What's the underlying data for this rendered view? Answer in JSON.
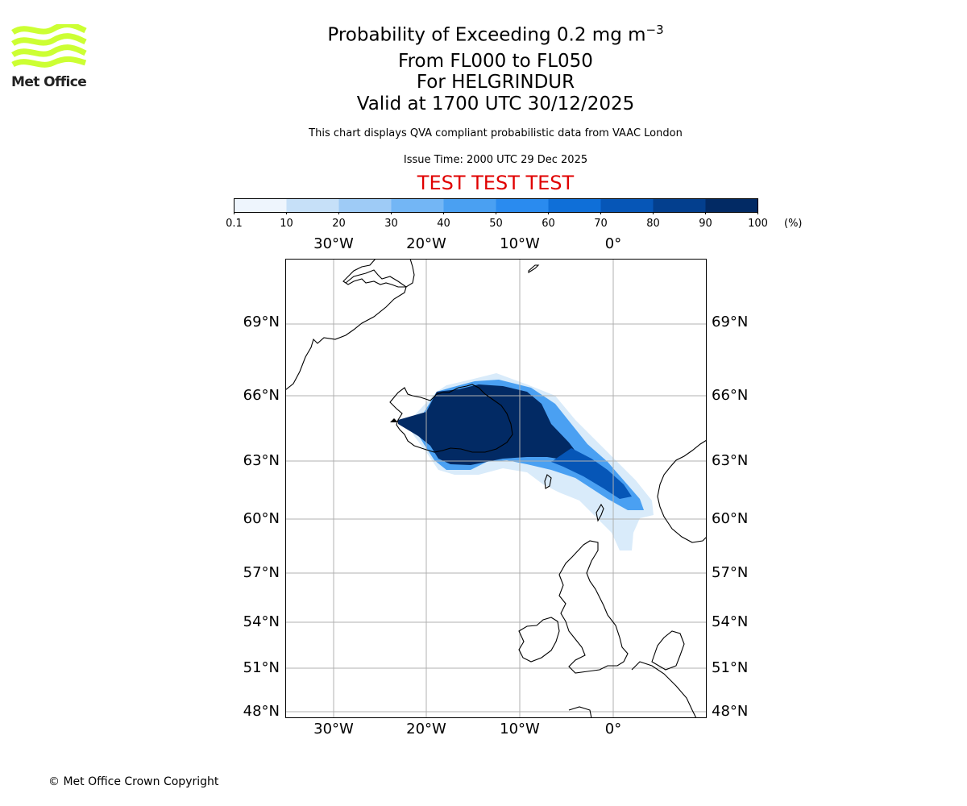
{
  "logo": {
    "text": "Met Office",
    "color": "#ccff33"
  },
  "header": {
    "title_prefix": "Probability of Exceeding 0.2 mg m",
    "title_exponent": "−3",
    "line2": "From FL000 to FL050",
    "line3": "For HELGRINDUR",
    "line4": "Valid at 1700 UTC 30/12/2025",
    "description": "This chart displays QVA compliant probabilistic data from VAAC London",
    "issue_time": "Issue Time: 2000 UTC 29 Dec 2025",
    "test_banner": "TEST TEST TEST",
    "test_color": "#e00000"
  },
  "colorbar": {
    "ticks": [
      "0.1",
      "10",
      "20",
      "30",
      "40",
      "50",
      "60",
      "70",
      "80",
      "90",
      "100"
    ],
    "colors": [
      "#eef5fd",
      "#c6e0f8",
      "#9ecbf6",
      "#73b6f5",
      "#4aa0f2",
      "#2a8bef",
      "#0f6fd8",
      "#0656b7",
      "#033f8e",
      "#022a64"
    ],
    "unit": "(%)"
  },
  "map": {
    "lon_labels": [
      "30°W",
      "20°W",
      "10°W",
      "0°"
    ],
    "lat_labels": [
      "69°N",
      "66°N",
      "63°N",
      "60°N",
      "57°N",
      "54°N",
      "51°N",
      "48°N"
    ],
    "gridline_color": "#b0b0b0"
  },
  "footer": {
    "copyright": "© Met Office Crown Copyright"
  }
}
